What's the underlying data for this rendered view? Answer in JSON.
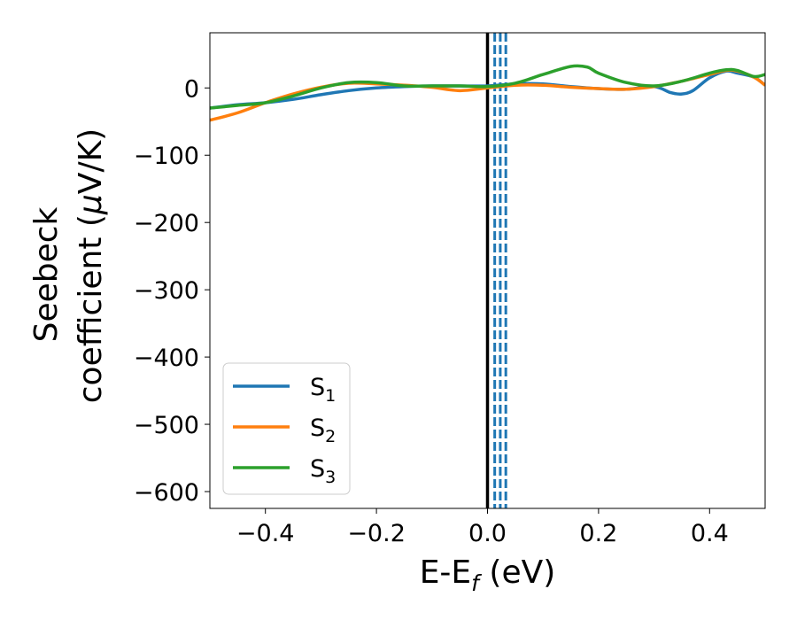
{
  "chart_data": {
    "type": "line",
    "xlabel": {
      "main": "E-E",
      "sub": "f",
      "suffix": " (eV)"
    },
    "ylabel": {
      "line1": "Seebeck",
      "line2_prefix": "coefficient  (",
      "line2_mu": "μ",
      "line2_suffix": "V/K)"
    },
    "xlim": [
      -0.5,
      0.5
    ],
    "ylim": [
      -625,
      82
    ],
    "xticks": [
      -0.4,
      -0.2,
      0.0,
      0.2,
      0.4
    ],
    "xtick_labels": [
      "−0.4",
      "−0.2",
      "0.0",
      "0.2",
      "0.4"
    ],
    "yticks": [
      0,
      -100,
      -200,
      -300,
      -400,
      -500,
      -600
    ],
    "ytick_labels": [
      "0",
      "−100",
      "−200",
      "−300",
      "−400",
      "−500",
      "−600"
    ],
    "legend_position": "lower-left",
    "vertical_lines": [
      {
        "x": 0.0,
        "color": "#000000",
        "style": "solid"
      },
      {
        "x": 0.013,
        "color": "#1f77b4",
        "style": "dashed"
      },
      {
        "x": 0.023,
        "color": "#1f77b4",
        "style": "dashed"
      },
      {
        "x": 0.033,
        "color": "#1f77b4",
        "style": "dashed"
      }
    ],
    "series": [
      {
        "name": "S",
        "sub": "1",
        "color": "#1f77b4",
        "x": [
          -0.5,
          -0.45,
          -0.4,
          -0.35,
          -0.3,
          -0.25,
          -0.2,
          -0.15,
          -0.1,
          -0.05,
          0.0,
          0.05,
          0.1,
          0.15,
          0.2,
          0.25,
          0.3,
          0.33,
          0.35,
          0.37,
          0.4,
          0.43,
          0.45,
          0.48,
          0.5
        ],
        "y": [
          -30,
          -25,
          -22,
          -17,
          -10,
          -4,
          0,
          2,
          3,
          3,
          3,
          6,
          6,
          2,
          -1,
          -2,
          2,
          -7,
          -9,
          -4,
          15,
          25,
          22,
          16,
          4
        ]
      },
      {
        "name": "S",
        "sub": "2",
        "color": "#ff7f0e",
        "x": [
          -0.5,
          -0.45,
          -0.4,
          -0.35,
          -0.3,
          -0.25,
          -0.2,
          -0.15,
          -0.1,
          -0.05,
          0.0,
          0.05,
          0.1,
          0.15,
          0.2,
          0.25,
          0.3,
          0.35,
          0.4,
          0.43,
          0.45,
          0.48,
          0.5
        ],
        "y": [
          -48,
          -37,
          -22,
          -9,
          1,
          7,
          6,
          4,
          1,
          -4,
          0,
          4,
          4,
          1,
          -1,
          -2,
          2,
          10,
          20,
          26,
          25,
          16,
          4
        ]
      },
      {
        "name": "S",
        "sub": "3",
        "color": "#2ca02c",
        "x": [
          -0.5,
          -0.45,
          -0.4,
          -0.35,
          -0.3,
          -0.25,
          -0.2,
          -0.15,
          -0.1,
          -0.05,
          0.0,
          0.05,
          0.1,
          0.15,
          0.18,
          0.2,
          0.25,
          0.3,
          0.35,
          0.4,
          0.43,
          0.45,
          0.48,
          0.5
        ],
        "y": [
          -30,
          -26,
          -22,
          -12,
          0,
          8,
          8,
          3,
          3,
          3,
          2,
          7,
          20,
          32,
          31,
          22,
          8,
          3,
          10,
          22,
          27,
          26,
          17,
          20
        ]
      }
    ]
  }
}
